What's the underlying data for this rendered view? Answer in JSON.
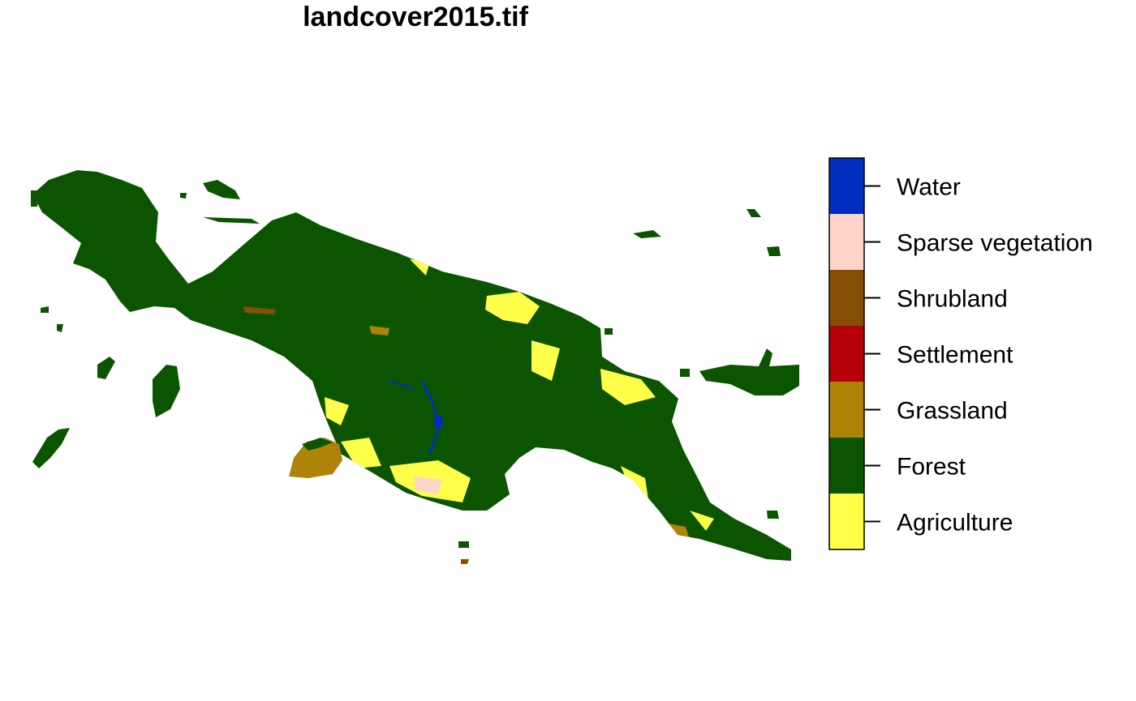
{
  "title": "landcover2015.tif",
  "legend": {
    "classes": [
      {
        "label": "Water",
        "color": "#002fc0"
      },
      {
        "label": "Sparse vegetation",
        "color": "#ffd4c8"
      },
      {
        "label": "Shrubland",
        "color": "#864f08"
      },
      {
        "label": "Settlement",
        "color": "#b50008"
      },
      {
        "label": "Grassland",
        "color": "#ad8408"
      },
      {
        "label": "Forest",
        "color": "#0b5500"
      },
      {
        "label": "Agriculture",
        "color": "#ffff4a"
      }
    ]
  }
}
